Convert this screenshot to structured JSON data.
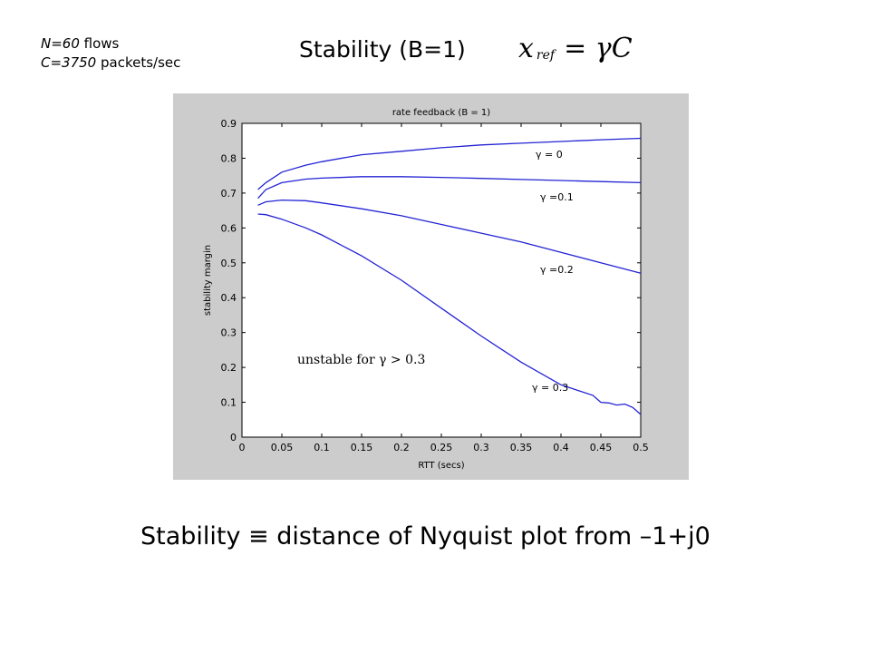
{
  "params": {
    "n_label": "N=60",
    "n_unit": " flows",
    "c_label": "C=3750",
    "c_unit": " packets/sec"
  },
  "slide_title": "Stability (B=1)",
  "formula": {
    "lhs": "x",
    "sub": "ref",
    "rhs": "= γC"
  },
  "bottom_text": "Stability ≡ distance of Nyquist plot from –1+j0",
  "colors": {
    "figure_bg": "#cccccc",
    "plot_bg": "#ffffff",
    "curve": "#2323d4"
  },
  "chart_data": {
    "type": "line",
    "title": "rate feedback (B = 1)",
    "xlabel": "RTT (secs)",
    "ylabel": "stability margin",
    "xlim": [
      0,
      0.5
    ],
    "ylim": [
      0,
      0.9
    ],
    "xticks": [
      0,
      0.05,
      0.1,
      0.15,
      0.2,
      0.25,
      0.3,
      0.35,
      0.4,
      0.45,
      0.5
    ],
    "yticks": [
      0,
      0.1,
      0.2,
      0.3,
      0.4,
      0.5,
      0.6,
      0.7,
      0.8,
      0.9
    ],
    "xtick_labels": [
      "0",
      "0.05",
      "0.1",
      "0.15",
      "0.2",
      "0.25",
      "0.3",
      "0.35",
      "0.4",
      "0.45",
      "0.5"
    ],
    "ytick_labels": [
      "0",
      "0.1",
      "0.2",
      "0.3",
      "0.4",
      "0.5",
      "0.6",
      "0.7",
      "0.8",
      "0.9"
    ],
    "annotation": "unstable for γ > 0.3",
    "series": [
      {
        "name": "γ = 0",
        "x": [
          0.02,
          0.03,
          0.05,
          0.08,
          0.1,
          0.15,
          0.2,
          0.25,
          0.3,
          0.35,
          0.4,
          0.45,
          0.5
        ],
        "y": [
          0.71,
          0.73,
          0.76,
          0.78,
          0.79,
          0.81,
          0.82,
          0.83,
          0.838,
          0.843,
          0.848,
          0.853,
          0.857
        ]
      },
      {
        "name": "γ =0.1",
        "x": [
          0.02,
          0.03,
          0.05,
          0.08,
          0.1,
          0.15,
          0.2,
          0.25,
          0.3,
          0.35,
          0.4,
          0.45,
          0.5
        ],
        "y": [
          0.685,
          0.71,
          0.73,
          0.74,
          0.743,
          0.747,
          0.747,
          0.745,
          0.742,
          0.739,
          0.736,
          0.733,
          0.73
        ]
      },
      {
        "name": "γ =0.2",
        "x": [
          0.02,
          0.03,
          0.05,
          0.08,
          0.1,
          0.15,
          0.2,
          0.25,
          0.3,
          0.35,
          0.4,
          0.45,
          0.5
        ],
        "y": [
          0.665,
          0.675,
          0.68,
          0.678,
          0.672,
          0.655,
          0.635,
          0.61,
          0.585,
          0.56,
          0.53,
          0.5,
          0.47
        ]
      },
      {
        "name": "γ = 0.3",
        "x": [
          0.02,
          0.03,
          0.05,
          0.08,
          0.1,
          0.15,
          0.2,
          0.25,
          0.3,
          0.35,
          0.4,
          0.42,
          0.44,
          0.45,
          0.46,
          0.47,
          0.48,
          0.49,
          0.5
        ],
        "y": [
          0.64,
          0.638,
          0.625,
          0.6,
          0.58,
          0.52,
          0.45,
          0.37,
          0.29,
          0.215,
          0.15,
          0.135,
          0.12,
          0.1,
          0.098,
          0.092,
          0.095,
          0.085,
          0.065
        ]
      }
    ]
  }
}
